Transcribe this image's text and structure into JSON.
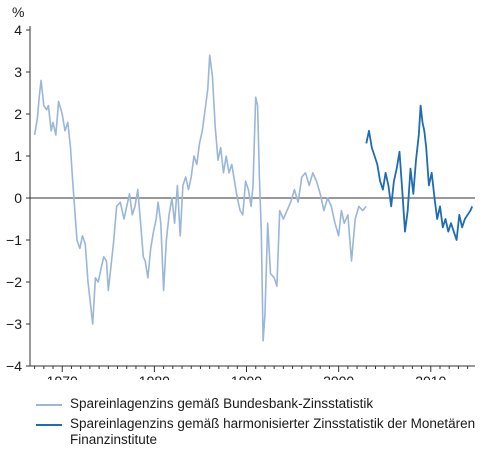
{
  "chart_data": {
    "type": "line",
    "y_unit_label": "%",
    "ylim": [
      -4,
      4
    ],
    "y_ticks": [
      4,
      3,
      2,
      1,
      0,
      -1,
      -2,
      -3,
      -4
    ],
    "xlim": [
      1966.5,
      2014.8
    ],
    "x_ticks": [
      1970,
      1980,
      1990,
      2000,
      2010
    ],
    "grid": "none",
    "legend_position": "bottom",
    "series": [
      {
        "name": "Spareinlagenzins gemäß Bundesbank-Zinsstatistik",
        "color": "#9ab6d9",
        "x": [
          1967.0,
          1967.3,
          1967.5,
          1967.7,
          1968.0,
          1968.3,
          1968.5,
          1968.8,
          1969.0,
          1969.3,
          1969.6,
          1970.0,
          1970.3,
          1970.6,
          1970.9,
          1971.1,
          1971.4,
          1971.6,
          1971.9,
          1972.2,
          1972.5,
          1972.8,
          1973.0,
          1973.3,
          1973.6,
          1973.9,
          1974.2,
          1974.5,
          1974.8,
          1975.0,
          1975.3,
          1975.6,
          1975.9,
          1976.3,
          1976.7,
          1977.0,
          1977.3,
          1977.6,
          1977.9,
          1978.2,
          1978.5,
          1978.8,
          1979.0,
          1979.3,
          1979.6,
          1979.9,
          1980.2,
          1980.4,
          1980.7,
          1981.0,
          1981.3,
          1981.6,
          1981.9,
          1982.2,
          1982.5,
          1982.8,
          1983.1,
          1983.4,
          1983.7,
          1984.0,
          1984.3,
          1984.6,
          1984.9,
          1985.2,
          1985.5,
          1985.8,
          1986.0,
          1986.3,
          1986.6,
          1986.9,
          1987.2,
          1987.5,
          1987.8,
          1988.1,
          1988.4,
          1988.7,
          1989.0,
          1989.3,
          1989.6,
          1989.9,
          1990.2,
          1990.5,
          1990.7,
          1991.0,
          1991.2,
          1991.4,
          1991.6,
          1991.8,
          1992.0,
          1992.3,
          1992.6,
          1993.0,
          1993.3,
          1993.6,
          1994.0,
          1994.4,
          1994.8,
          1995.2,
          1995.6,
          1996.0,
          1996.4,
          1996.8,
          1997.2,
          1997.6,
          1998.0,
          1998.4,
          1998.8,
          1999.2,
          1999.6,
          2000.0,
          2000.3,
          2000.6,
          2001.0,
          2001.4,
          2001.8,
          2002.2,
          2002.6,
          2003.0
        ],
        "y": [
          1.5,
          1.9,
          2.4,
          2.8,
          2.2,
          2.1,
          2.2,
          1.6,
          1.8,
          1.5,
          2.3,
          2.0,
          1.6,
          1.8,
          1.2,
          0.5,
          -0.4,
          -1.0,
          -1.2,
          -0.9,
          -1.1,
          -2.0,
          -2.4,
          -3.0,
          -1.9,
          -2.0,
          -1.7,
          -1.4,
          -1.5,
          -2.2,
          -1.6,
          -1.0,
          -0.2,
          -0.1,
          -0.5,
          -0.2,
          0.1,
          -0.4,
          -0.2,
          0.2,
          -0.6,
          -1.4,
          -1.5,
          -1.9,
          -1.2,
          -0.8,
          -0.5,
          -0.1,
          -0.6,
          -2.2,
          -1.0,
          -0.4,
          0.0,
          -0.6,
          0.3,
          -0.9,
          0.3,
          0.5,
          0.2,
          0.5,
          1.0,
          0.8,
          1.3,
          1.6,
          2.1,
          2.6,
          3.4,
          2.9,
          1.7,
          0.9,
          1.2,
          0.6,
          1.0,
          0.6,
          0.8,
          0.4,
          0.0,
          -0.3,
          -0.4,
          0.4,
          0.2,
          -0.2,
          0.3,
          2.4,
          2.2,
          0.5,
          -0.8,
          -3.4,
          -2.8,
          -0.6,
          -1.8,
          -1.9,
          -2.1,
          -0.3,
          -0.5,
          -0.3,
          -0.1,
          0.2,
          -0.1,
          0.5,
          0.6,
          0.3,
          0.6,
          0.4,
          0.1,
          -0.3,
          0.0,
          -0.2,
          -0.6,
          -0.9,
          -0.3,
          -0.6,
          -0.4,
          -1.5,
          -0.5,
          -0.2,
          -0.3,
          -0.2
        ]
      },
      {
        "name": "Spareinlagenzins gemäß harmonisierter Zinsstatistik der Monetären Finanzinstitute",
        "color": "#1f6cb0",
        "x": [
          2003.0,
          2003.3,
          2003.6,
          2003.9,
          2004.2,
          2004.5,
          2004.8,
          2005.1,
          2005.4,
          2005.7,
          2006.0,
          2006.3,
          2006.6,
          2006.9,
          2007.2,
          2007.5,
          2007.8,
          2008.1,
          2008.4,
          2008.7,
          2008.9,
          2009.1,
          2009.3,
          2009.5,
          2009.8,
          2010.1,
          2010.4,
          2010.7,
          2011.0,
          2011.3,
          2011.6,
          2011.9,
          2012.2,
          2012.5,
          2012.8,
          2013.1,
          2013.4,
          2013.7,
          2014.0,
          2014.3,
          2014.5
        ],
        "y": [
          1.3,
          1.6,
          1.2,
          1.0,
          0.8,
          0.4,
          0.2,
          0.6,
          0.3,
          -0.2,
          0.4,
          0.7,
          1.1,
          0.2,
          -0.8,
          -0.3,
          0.7,
          0.1,
          0.9,
          1.5,
          2.2,
          1.8,
          1.6,
          1.2,
          0.3,
          0.6,
          0.0,
          -0.5,
          -0.2,
          -0.7,
          -0.5,
          -0.8,
          -0.6,
          -0.8,
          -1.0,
          -0.4,
          -0.7,
          -0.5,
          -0.4,
          -0.3,
          -0.2
        ]
      }
    ]
  }
}
